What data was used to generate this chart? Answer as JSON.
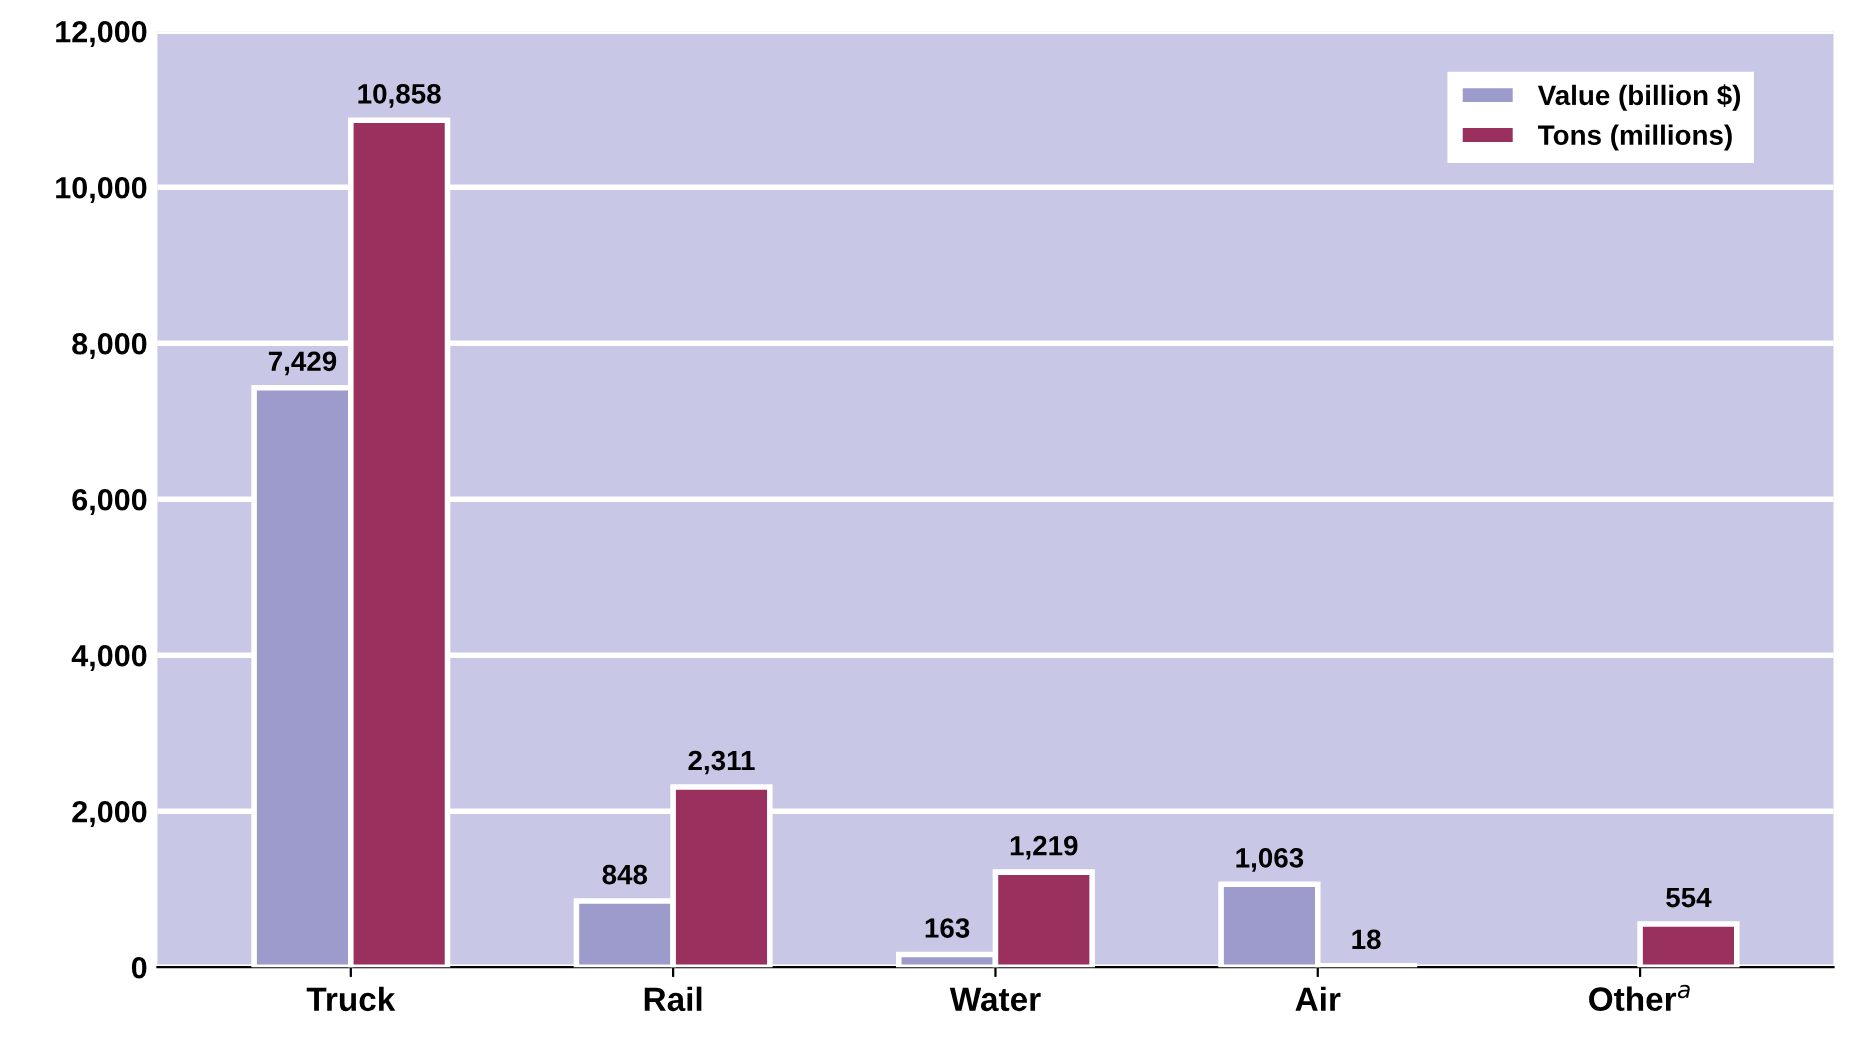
{
  "chart_data": {
    "type": "bar",
    "categories": [
      "Truck",
      "Rail",
      "Water",
      "Air",
      "Other$^{a}$"
    ],
    "series": [
      {
        "name": "Value (billion $)",
        "color": "#9d9bcb",
        "values": [
          7429,
          848,
          163,
          1063,
          null
        ],
        "value_labels": [
          "7,429",
          "848",
          "163",
          "1,063",
          null
        ]
      },
      {
        "name": "Tons (millions)",
        "color": "#99305e",
        "values": [
          10858,
          2311,
          1219,
          18,
          554
        ],
        "value_labels": [
          "10,858",
          "2,311",
          "1,219",
          "18",
          "554"
        ]
      }
    ],
    "ylim": [
      0,
      12000
    ],
    "yticks": [
      {
        "value": 0,
        "label": "0"
      },
      {
        "value": 2000,
        "label": "2,000"
      },
      {
        "value": 4000,
        "label": "4,000"
      },
      {
        "value": 6000,
        "label": "6,000"
      },
      {
        "value": 8000,
        "label": "8,000"
      },
      {
        "value": 10000,
        "label": "10,000"
      },
      {
        "value": 12000,
        "label": "12,000"
      }
    ],
    "grid": "y",
    "legend": "top right"
  }
}
